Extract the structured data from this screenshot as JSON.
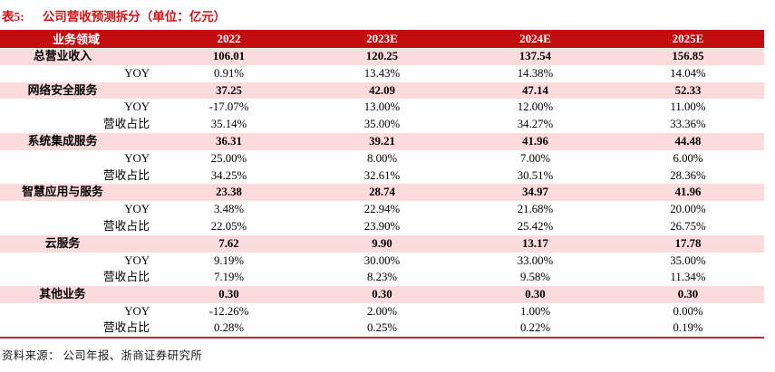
{
  "title": {
    "label": "表5:",
    "text": "公司营收预测拆分（单位：亿元）"
  },
  "table": {
    "columns": [
      "业务领域",
      "2022",
      "2023E",
      "2024E",
      "2025E"
    ],
    "rows": [
      {
        "type": "section",
        "label": "总营业收入",
        "values": [
          "106.01",
          "120.25",
          "137.54",
          "156.85"
        ]
      },
      {
        "type": "sub",
        "label": "YOY",
        "values": [
          "0.91%",
          "13.43%",
          "14.38%",
          "14.04%"
        ]
      },
      {
        "type": "section",
        "label": "网络安全服务",
        "values": [
          "37.25",
          "42.09",
          "47.14",
          "52.33"
        ]
      },
      {
        "type": "sub",
        "label": "YOY",
        "values": [
          "-17.07%",
          "13.00%",
          "12.00%",
          "11.00%"
        ]
      },
      {
        "type": "sub",
        "label": "营收占比",
        "values": [
          "35.14%",
          "35.00%",
          "34.27%",
          "33.36%"
        ]
      },
      {
        "type": "section",
        "label": "系统集成服务",
        "values": [
          "36.31",
          "39.21",
          "41.96",
          "44.48"
        ]
      },
      {
        "type": "sub",
        "label": "YOY",
        "values": [
          "25.00%",
          "8.00%",
          "7.00%",
          "6.00%"
        ]
      },
      {
        "type": "sub",
        "label": "营收占比",
        "values": [
          "34.25%",
          "32.61%",
          "30.51%",
          "28.36%"
        ]
      },
      {
        "type": "section",
        "label": "智慧应用与服务",
        "values": [
          "23.38",
          "28.74",
          "34.97",
          "41.96"
        ]
      },
      {
        "type": "sub",
        "label": "YOY",
        "values": [
          "3.48%",
          "22.94%",
          "21.68%",
          "20.00%"
        ]
      },
      {
        "type": "sub",
        "label": "营收占比",
        "values": [
          "22.05%",
          "23.90%",
          "25.42%",
          "26.75%"
        ]
      },
      {
        "type": "section",
        "label": "云服务",
        "values": [
          "7.62",
          "9.90",
          "13.17",
          "17.78"
        ]
      },
      {
        "type": "sub",
        "label": "YOY",
        "values": [
          "9.19%",
          "30.00%",
          "33.00%",
          "35.00%"
        ]
      },
      {
        "type": "sub",
        "label": "营收占比",
        "values": [
          "7.19%",
          "8.23%",
          "9.58%",
          "11.34%"
        ]
      },
      {
        "type": "section",
        "label": "其他业务",
        "values": [
          "0.30",
          "0.30",
          "0.30",
          "0.30"
        ]
      },
      {
        "type": "sub",
        "label": "YOY",
        "values": [
          "-12.26%",
          "2.00%",
          "1.00%",
          "0.00%"
        ]
      },
      {
        "type": "sub",
        "label": "营收占比",
        "values": [
          "0.28%",
          "0.25%",
          "0.22%",
          "0.19%"
        ]
      }
    ]
  },
  "footer": {
    "source": "资料来源： 公司年报、浙商证券研究所"
  },
  "colors": {
    "header_bg": "#c20e10",
    "section_row_bg": "#fbdbdb",
    "title_red": "#d21114",
    "bottom_rule": "#b3282c"
  }
}
